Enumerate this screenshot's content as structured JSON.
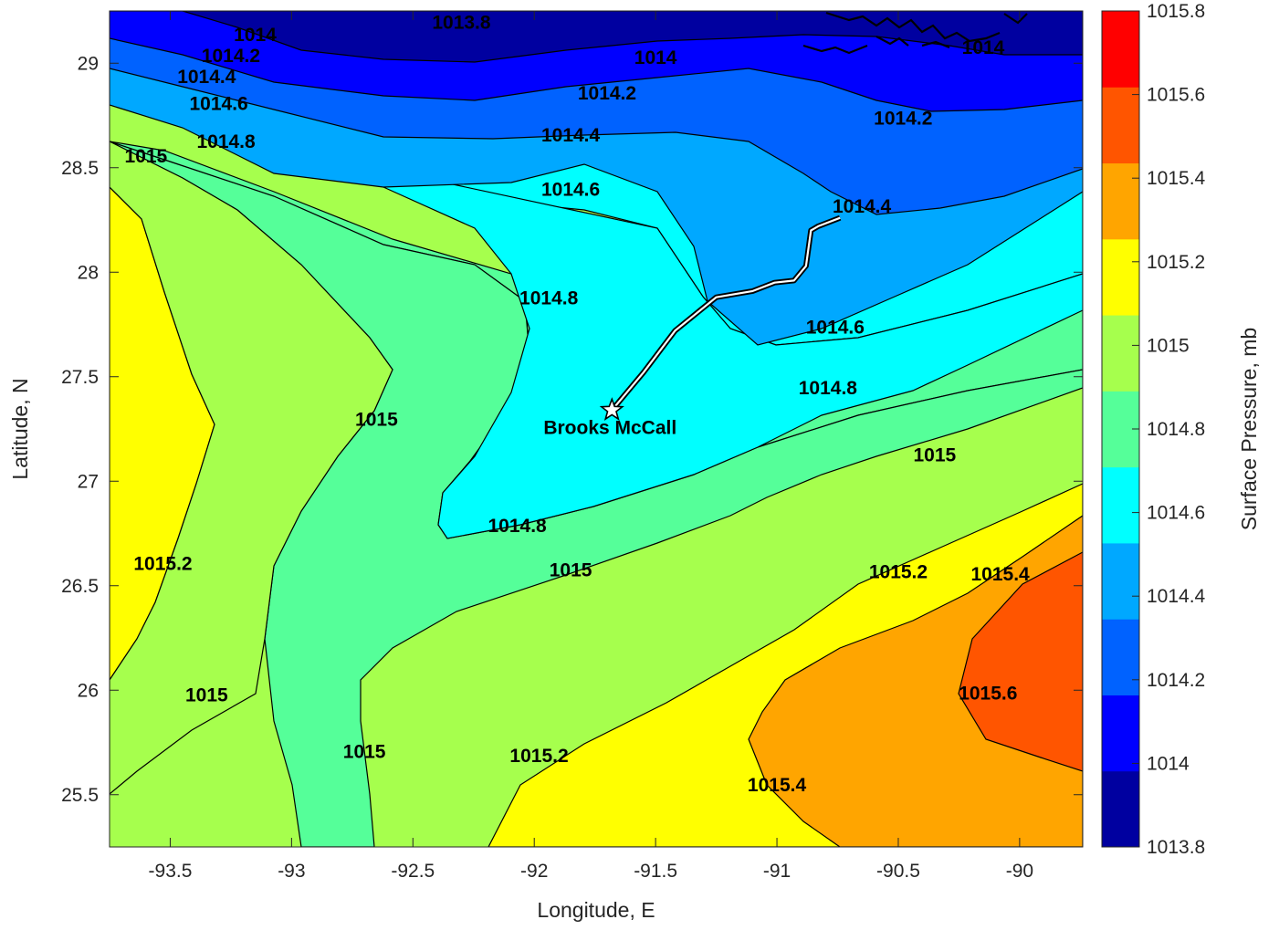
{
  "chart_data": {
    "type": "contour",
    "title": "",
    "xlabel": "Longitude, E",
    "ylabel": "Latitude, N",
    "xlim": [
      -93.75,
      -89.74
    ],
    "ylim": [
      25.25,
      29.25
    ],
    "x_ticks": [
      "-93.5",
      "-93",
      "-92.5",
      "-92",
      "-91.5",
      "-91",
      "-90.5",
      "-90"
    ],
    "x_tick_values": [
      -93.5,
      -93,
      -92.5,
      -92,
      -91.5,
      -91,
      -90.5,
      -90
    ],
    "y_ticks": [
      "25.5",
      "26",
      "26.5",
      "27",
      "27.5",
      "28",
      "28.5",
      "29"
    ],
    "y_tick_values": [
      25.5,
      26,
      26.5,
      27,
      27.5,
      28,
      28.5,
      29
    ],
    "colorbar": {
      "label": "Surface Pressure, mb",
      "ticks": [
        "1013.8",
        "1014",
        "1014.2",
        "1014.4",
        "1014.6",
        "1014.8",
        "1015",
        "1015.2",
        "1015.4",
        "1015.6",
        "1015.8"
      ],
      "levels": [
        1013.8,
        1013.9,
        1014.0,
        1014.1,
        1014.2,
        1014.3,
        1014.4,
        1014.5,
        1014.6,
        1014.7,
        1014.8,
        1014.9,
        1015.0,
        1015.1,
        1015.2,
        1015.3,
        1015.4,
        1015.5,
        1015.6,
        1015.7,
        1015.8
      ],
      "colors": [
        "#0000a0",
        "#0000ff",
        "#0062ff",
        "#00a8ff",
        "#00ffff",
        "#55ff99",
        "#a6ff4d",
        "#ffff00",
        "#ffa500",
        "#ff5500",
        "#ff0000"
      ]
    },
    "contour_labels": [
      {
        "text": "1013.8",
        "lon": -92.3,
        "lat": 29.19
      },
      {
        "text": "1014",
        "lon": -93.15,
        "lat": 29.13
      },
      {
        "text": "1014.2",
        "lon": -93.25,
        "lat": 29.03
      },
      {
        "text": "1014.4",
        "lon": -93.35,
        "lat": 28.93
      },
      {
        "text": "1014.6",
        "lon": -93.3,
        "lat": 28.8
      },
      {
        "text": "1014.8",
        "lon": -93.27,
        "lat": 28.62
      },
      {
        "text": "1015",
        "lon": -93.6,
        "lat": 28.55
      },
      {
        "text": "1014",
        "lon": -91.5,
        "lat": 29.02
      },
      {
        "text": "1014.2",
        "lon": -91.7,
        "lat": 28.85
      },
      {
        "text": "1014.4",
        "lon": -91.85,
        "lat": 28.65
      },
      {
        "text": "1014.6",
        "lon": -91.85,
        "lat": 28.39
      },
      {
        "text": "1014",
        "lon": -90.15,
        "lat": 29.07
      },
      {
        "text": "1014.2",
        "lon": -90.48,
        "lat": 28.73
      },
      {
        "text": "1014.4",
        "lon": -90.65,
        "lat": 28.31
      },
      {
        "text": "1014.8",
        "lon": -91.94,
        "lat": 27.87
      },
      {
        "text": "1014.6",
        "lon": -90.76,
        "lat": 27.73
      },
      {
        "text": "1014.8",
        "lon": -90.79,
        "lat": 27.44
      },
      {
        "text": "1015",
        "lon": -92.65,
        "lat": 27.29
      },
      {
        "text": "1015",
        "lon": -90.35,
        "lat": 27.12
      },
      {
        "text": "1014.8",
        "lon": -92.07,
        "lat": 26.78
      },
      {
        "text": "1015",
        "lon": -91.85,
        "lat": 26.57
      },
      {
        "text": "1015.2",
        "lon": -90.5,
        "lat": 26.56
      },
      {
        "text": "1015.4",
        "lon": -90.08,
        "lat": 26.55
      },
      {
        "text": "1015.2",
        "lon": -93.53,
        "lat": 26.6
      },
      {
        "text": "1015",
        "lon": -93.35,
        "lat": 25.97
      },
      {
        "text": "1015",
        "lon": -92.7,
        "lat": 25.7
      },
      {
        "text": "1015.2",
        "lon": -91.98,
        "lat": 25.68
      },
      {
        "text": "1015.6",
        "lon": -90.13,
        "lat": 25.98
      },
      {
        "text": "1015.4",
        "lon": -91.0,
        "lat": 25.54
      }
    ],
    "ship": {
      "name": "Brooks McCall",
      "position": {
        "lon": -91.68,
        "lat": 27.34
      },
      "track": [
        [
          -91.68,
          27.34
        ],
        [
          -91.55,
          27.52
        ],
        [
          -91.42,
          27.72
        ],
        [
          -91.25,
          27.88
        ],
        [
          -91.1,
          27.91
        ],
        [
          -91.01,
          27.95
        ],
        [
          -90.93,
          27.96
        ],
        [
          -90.88,
          28.03
        ],
        [
          -90.86,
          28.2
        ],
        [
          -90.83,
          28.22
        ],
        [
          -90.74,
          28.26
        ]
      ]
    }
  }
}
